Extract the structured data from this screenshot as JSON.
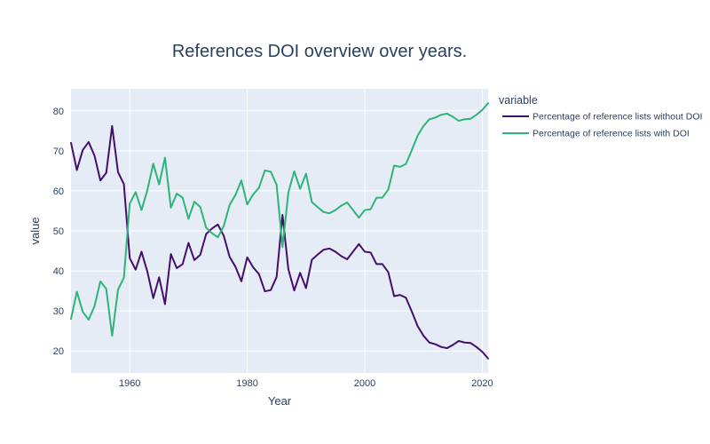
{
  "chart_data": {
    "type": "line",
    "title": "References DOI overview over years.",
    "xlabel": "Year",
    "ylabel": "value",
    "xlim": [
      1950,
      2021
    ],
    "ylim": [
      14.5,
      85.5
    ],
    "x_ticks": [
      1960,
      1980,
      2000,
      2020
    ],
    "y_ticks": [
      20,
      30,
      40,
      50,
      60,
      70,
      80
    ],
    "grid": true,
    "background": "#e5ecf6",
    "legend_title": "variable",
    "legend_position": "right",
    "x": [
      1950,
      1951,
      1952,
      1953,
      1954,
      1955,
      1956,
      1957,
      1958,
      1959,
      1960,
      1961,
      1962,
      1963,
      1964,
      1965,
      1966,
      1967,
      1968,
      1969,
      1970,
      1971,
      1972,
      1973,
      1974,
      1975,
      1976,
      1977,
      1978,
      1979,
      1980,
      1981,
      1982,
      1983,
      1984,
      1985,
      1986,
      1987,
      1988,
      1989,
      1990,
      1991,
      1992,
      1993,
      1994,
      1995,
      1996,
      1997,
      1998,
      1999,
      2000,
      2001,
      2002,
      2003,
      2004,
      2005,
      2006,
      2007,
      2008,
      2009,
      2010,
      2011,
      2012,
      2013,
      2014,
      2015,
      2016,
      2017,
      2018,
      2019,
      2020,
      2021
    ],
    "series": [
      {
        "name": "Percentage of reference lists without DOI",
        "color": "#440f6b",
        "values": [
          72,
          65.2,
          70.2,
          72.2,
          68.8,
          62.6,
          64.5,
          76.2,
          64.7,
          61.7,
          43.2,
          40.3,
          44.8,
          39.8,
          33.2,
          38.4,
          31.7,
          44.2,
          40.7,
          41.7,
          47,
          42.7,
          44,
          49.2,
          50.6,
          51.6,
          48.8,
          43.5,
          41,
          37.4,
          43.4,
          40.9,
          39.2,
          34.9,
          35.2,
          38.5,
          54,
          40.4,
          35.1,
          39.5,
          35.7,
          42.8,
          44.1,
          45.3,
          45.6,
          44.8,
          43.7,
          42.9,
          44.8,
          46.7,
          44.8,
          44.6,
          41.7,
          41.7,
          39.7,
          33.7,
          34,
          33.3,
          29.9,
          26.2,
          23.8,
          22.1,
          21.7,
          21,
          20.7,
          21.5,
          22.5,
          22.1,
          22,
          21,
          19.8,
          18.1
        ]
      },
      {
        "name": "Percentage of reference lists with DOI",
        "color": "#2db579",
        "values": [
          28,
          34.8,
          29.8,
          27.8,
          31.2,
          37.4,
          35.5,
          23.8,
          35.3,
          38.3,
          56.8,
          59.7,
          55.2,
          60.2,
          66.8,
          61.6,
          68.3,
          55.8,
          59.3,
          58.3,
          53,
          57.3,
          56,
          50.8,
          49.4,
          48.4,
          51.2,
          56.5,
          59,
          62.6,
          56.6,
          59.1,
          60.8,
          65.1,
          64.8,
          61.5,
          46,
          59.6,
          64.9,
          60.5,
          64.3,
          57.2,
          55.9,
          54.7,
          54.4,
          55.2,
          56.3,
          57.1,
          55.2,
          53.3,
          55.2,
          55.4,
          58.3,
          58.3,
          60.3,
          66.3,
          66,
          66.7,
          70.1,
          73.8,
          76.2,
          77.9,
          78.3,
          79,
          79.3,
          78.5,
          77.5,
          77.9,
          78,
          79,
          80.2,
          81.9
        ]
      }
    ]
  }
}
